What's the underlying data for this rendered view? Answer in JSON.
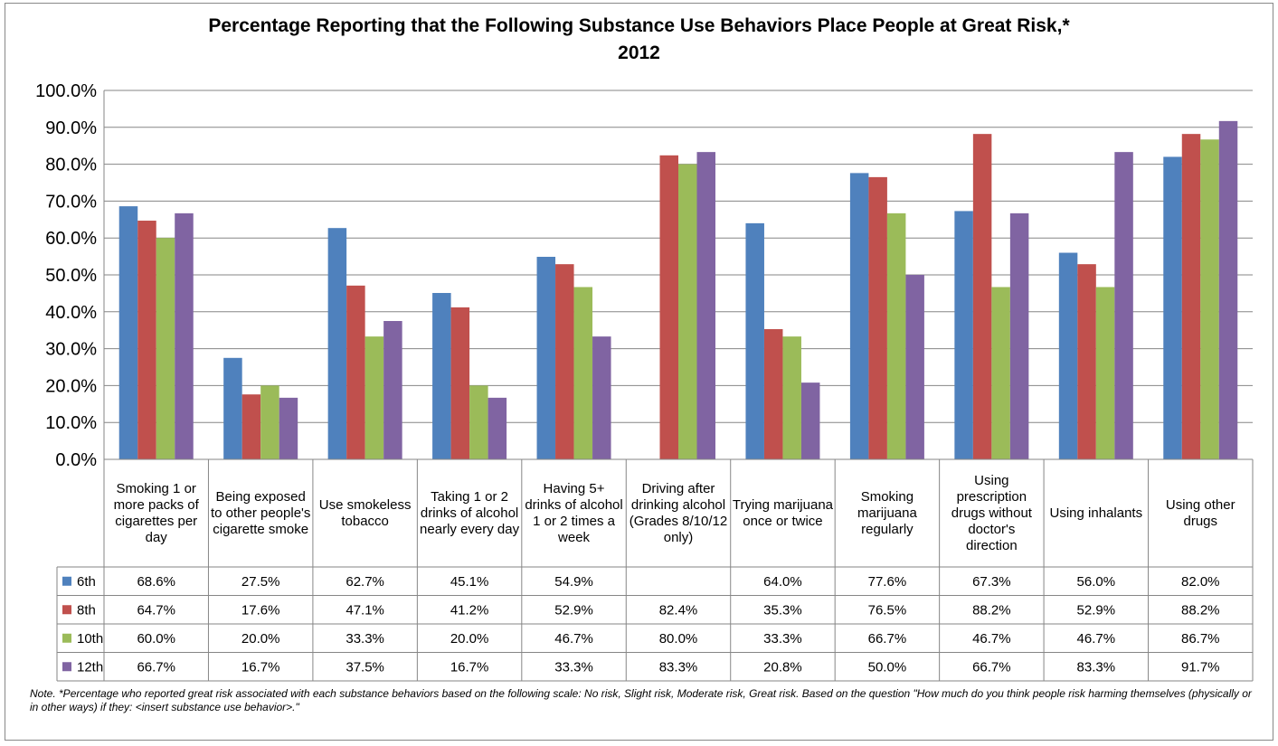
{
  "chart_data": {
    "type": "bar",
    "title_line1": "Percentage Reporting that the Following Substance Use Behaviors Place People at Great Risk,*",
    "title_line2": "2012",
    "ylim": [
      0,
      100
    ],
    "yticks": [
      "0.0%",
      "10.0%",
      "20.0%",
      "30.0%",
      "40.0%",
      "50.0%",
      "60.0%",
      "70.0%",
      "80.0%",
      "90.0%",
      "100.0%"
    ],
    "grid": true,
    "categories": [
      "Smoking 1 or more packs of cigarettes per day",
      "Being exposed to other people's cigarette smoke",
      "Use smokeless tobacco",
      "Taking 1 or 2 drinks of alcohol nearly every day",
      "Having 5+ drinks of alcohol 1 or 2 times a week",
      "Driving after drinking alcohol (Grades 8/10/12 only)",
      "Trying marijuana once or twice",
      "Smoking marijuana regularly",
      "Using prescription drugs without doctor's direction",
      "Using inhalants",
      "Using other drugs"
    ],
    "series": [
      {
        "name": "6th",
        "color": "#4F81BD",
        "values": [
          68.6,
          27.5,
          62.7,
          45.1,
          54.9,
          null,
          64.0,
          77.6,
          67.3,
          56.0,
          82.0
        ],
        "labels": [
          "68.6%",
          "27.5%",
          "62.7%",
          "45.1%",
          "54.9%",
          "",
          "64.0%",
          "77.6%",
          "67.3%",
          "56.0%",
          "82.0%"
        ]
      },
      {
        "name": "8th",
        "color": "#C0504D",
        "values": [
          64.7,
          17.6,
          47.1,
          41.2,
          52.9,
          82.4,
          35.3,
          76.5,
          88.2,
          52.9,
          88.2
        ],
        "labels": [
          "64.7%",
          "17.6%",
          "47.1%",
          "41.2%",
          "52.9%",
          "82.4%",
          "35.3%",
          "76.5%",
          "88.2%",
          "52.9%",
          "88.2%"
        ]
      },
      {
        "name": "10th",
        "color": "#9BBB59",
        "values": [
          60.0,
          20.0,
          33.3,
          20.0,
          46.7,
          80.0,
          33.3,
          66.7,
          46.7,
          46.7,
          86.7
        ],
        "labels": [
          "60.0%",
          "20.0%",
          "33.3%",
          "20.0%",
          "46.7%",
          "80.0%",
          "33.3%",
          "66.7%",
          "46.7%",
          "46.7%",
          "86.7%"
        ]
      },
      {
        "name": "12th",
        "color": "#8064A2",
        "values": [
          66.7,
          16.7,
          37.5,
          16.7,
          33.3,
          83.3,
          20.8,
          50.0,
          66.7,
          83.3,
          91.7
        ],
        "labels": [
          "66.7%",
          "16.7%",
          "37.5%",
          "16.7%",
          "33.3%",
          "83.3%",
          "20.8%",
          "50.0%",
          "66.7%",
          "83.3%",
          "91.7%"
        ]
      }
    ],
    "note": "Note. *Percentage who reported great risk associated with each substance behaviors based on the following scale: No risk, Slight risk, Moderate risk, Great risk.  Based on the question \"How much do you think people risk harming themselves (physically or in other ways) if they: <insert substance use behavior>.\""
  }
}
